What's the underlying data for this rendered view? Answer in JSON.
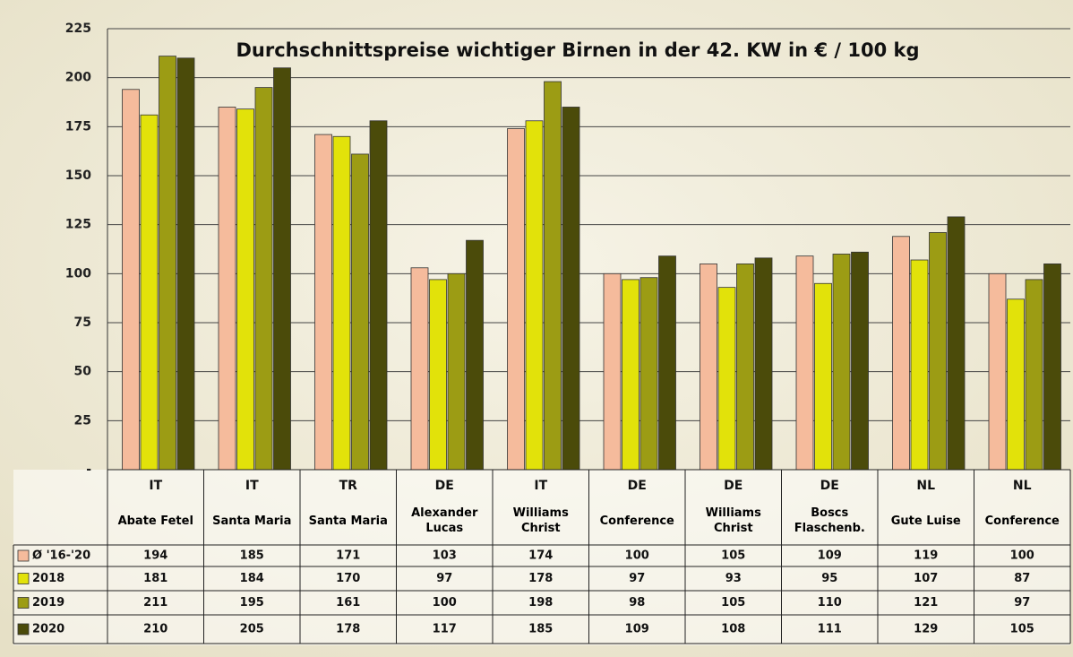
{
  "chart_data": {
    "type": "bar",
    "title": "Durchschnittspreise wichtiger Birnen in der 42. KW in € / 100 kg",
    "countries": [
      "IT",
      "IT",
      "TR",
      "DE",
      "IT",
      "DE",
      "DE",
      "DE",
      "NL",
      "NL"
    ],
    "categories": [
      "Abate Fetel",
      "Santa Maria",
      "Santa Maria",
      "Alexander Lucas",
      "Williams Christ",
      "Conference",
      "Williams Christ",
      "Boscs Flaschenb.",
      "Gute Luise",
      "Conference"
    ],
    "series": [
      {
        "name": "Ø '16-'20",
        "color": "#f5bb9c",
        "values": [
          194,
          185,
          171,
          103,
          174,
          100,
          105,
          109,
          119,
          100
        ]
      },
      {
        "name": "2018",
        "color": "#e2e20a",
        "values": [
          181,
          184,
          170,
          97,
          178,
          97,
          93,
          95,
          107,
          87
        ]
      },
      {
        "name": "2019",
        "color": "#9c9c14",
        "values": [
          211,
          195,
          161,
          100,
          198,
          98,
          105,
          110,
          121,
          97
        ]
      },
      {
        "name": "2020",
        "color": "#4b4b0a",
        "values": [
          210,
          205,
          178,
          117,
          185,
          109,
          108,
          111,
          129,
          105
        ]
      }
    ],
    "ylim": [
      0,
      225
    ],
    "yticks": [
      {
        "value": 0,
        "label": "-"
      },
      25,
      50,
      75,
      100,
      125,
      150,
      175,
      200,
      225
    ],
    "grid": true
  }
}
